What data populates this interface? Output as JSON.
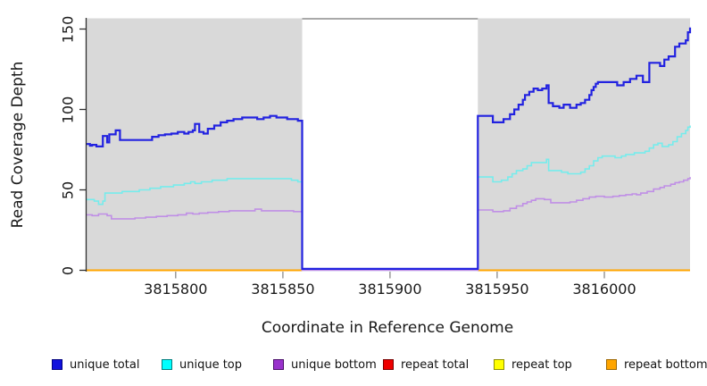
{
  "chart_data": {
    "type": "line",
    "step_interpolation": true,
    "title": "",
    "xlabel": "Coordinate in Reference Genome",
    "ylabel": "Read Coverage Depth",
    "xlim": [
      3815758,
      3816040
    ],
    "ylim": [
      0,
      155
    ],
    "x_ticks": [
      3815800,
      3815850,
      3815900,
      3815950,
      3816000
    ],
    "y_ticks": [
      0,
      50,
      100,
      150
    ],
    "grid": "off",
    "plot_background_color": "#ffffff",
    "shaded_region_color": "#d9d9d9",
    "shaded_regions": [
      [
        3815758,
        3815859
      ],
      [
        3815941,
        3816040
      ]
    ],
    "masked_gap": {
      "from": 3815859,
      "to": 3815941,
      "top_border_color": "#a9a9a9"
    },
    "legend_position": "bottom",
    "legend": [
      {
        "label": "unique total",
        "fill": "#1111dd",
        "border": "#000080"
      },
      {
        "label": "unique top",
        "fill": "#00ffff",
        "border": "#007f7f"
      },
      {
        "label": "unique bottom",
        "fill": "#9932cc",
        "border": "#4b0e6b"
      },
      {
        "label": "repeat total",
        "fill": "#ee0000",
        "border": "#7a0000"
      },
      {
        "label": "repeat top",
        "fill": "#ffff00",
        "border": "#8f8f00"
      },
      {
        "label": "repeat bottom",
        "fill": "#ffa500",
        "border": "#9e6700"
      }
    ],
    "series": [
      {
        "name": "repeat total",
        "color": "#ee0000",
        "width": 1.6,
        "segments": [
          [
            [
              3815758,
              0
            ],
            [
              3815859,
              0
            ]
          ],
          [
            [
              3815941,
              0
            ],
            [
              3816040,
              0
            ]
          ]
        ]
      },
      {
        "name": "repeat top",
        "color": "#ffff00",
        "width": 1.6,
        "segments": [
          [
            [
              3815758,
              0
            ],
            [
              3815859,
              0
            ]
          ],
          [
            [
              3815941,
              0
            ],
            [
              3816040,
              0
            ]
          ]
        ]
      },
      {
        "name": "repeat bottom",
        "color": "#ffa500",
        "width": 2,
        "segments": [
          [
            [
              3815758,
              0
            ],
            [
              3815859,
              0
            ]
          ],
          [
            [
              3815941,
              0
            ],
            [
              3816040,
              0
            ]
          ]
        ]
      },
      {
        "name": "unique top",
        "color": "#76ecec",
        "width": 1.6,
        "segments": [
          [
            [
              3815758,
              44
            ],
            [
              3815762,
              43
            ],
            [
              3815764,
              41
            ],
            [
              3815766,
              43
            ],
            [
              3815767,
              48
            ],
            [
              3815775,
              49
            ],
            [
              3815783,
              50
            ],
            [
              3815788,
              51
            ],
            [
              3815793,
              52
            ],
            [
              3815799,
              53
            ],
            [
              3815804,
              54
            ],
            [
              3815807,
              55
            ],
            [
              3815809,
              54
            ],
            [
              3815812,
              55
            ],
            [
              3815817,
              56
            ],
            [
              3815824,
              57
            ],
            [
              3815852,
              57
            ],
            [
              3815854,
              56
            ],
            [
              3815857,
              55
            ],
            [
              3815859,
              0.1
            ],
            [
              3815941,
              58
            ],
            [
              3815948,
              55
            ],
            [
              3815952,
              56
            ],
            [
              3815955,
              58
            ],
            [
              3815957,
              60
            ],
            [
              3815959,
              62
            ],
            [
              3815962,
              63
            ],
            [
              3815964,
              65
            ],
            [
              3815966,
              67
            ],
            [
              3815971,
              67
            ],
            [
              3815973,
              69
            ],
            [
              3815974,
              62
            ],
            [
              3815980,
              61
            ],
            [
              3815983,
              60
            ],
            [
              3815989,
              61
            ],
            [
              3815991,
              63
            ],
            [
              3815993,
              65
            ],
            [
              3815995,
              68
            ],
            [
              3815997,
              70
            ],
            [
              3815999,
              71
            ],
            [
              3816005,
              70
            ],
            [
              3816008,
              71
            ],
            [
              3816010,
              72
            ],
            [
              3816014,
              73
            ],
            [
              3816019,
              74
            ],
            [
              3816021,
              76
            ],
            [
              3816023,
              78
            ],
            [
              3816025,
              79
            ],
            [
              3816027,
              77
            ],
            [
              3816030,
              78
            ],
            [
              3816032,
              80
            ],
            [
              3816034,
              83
            ],
            [
              3816036,
              85
            ],
            [
              3816038,
              87
            ],
            [
              3816039,
              89
            ],
            [
              3816040,
              90
            ]
          ]
        ]
      },
      {
        "name": "unique bottom",
        "color": "#c08fe6",
        "width": 1.6,
        "segments": [
          [
            [
              3815758,
              34.5
            ],
            [
              3815761,
              34
            ],
            [
              3815764,
              35
            ],
            [
              3815768,
              34
            ],
            [
              3815770,
              32
            ],
            [
              3815781,
              32.5
            ],
            [
              3815786,
              33
            ],
            [
              3815791,
              33.5
            ],
            [
              3815796,
              34
            ],
            [
              3815801,
              34.5
            ],
            [
              3815805,
              35.5
            ],
            [
              3815808,
              35
            ],
            [
              3815811,
              35.5
            ],
            [
              3815815,
              36
            ],
            [
              3815820,
              36.5
            ],
            [
              3815825,
              37
            ],
            [
              3815837,
              38
            ],
            [
              3815840,
              37
            ],
            [
              3815855,
              36.5
            ],
            [
              3815859,
              0.05
            ],
            [
              3815941,
              37.5
            ],
            [
              3815948,
              36.5
            ],
            [
              3815953,
              37
            ],
            [
              3815956,
              38.5
            ],
            [
              3815959,
              40
            ],
            [
              3815962,
              41.5
            ],
            [
              3815964,
              42.5
            ],
            [
              3815966,
              43.5
            ],
            [
              3815968,
              44.5
            ],
            [
              3815972,
              44
            ],
            [
              3815975,
              42
            ],
            [
              3815984,
              42.5
            ],
            [
              3815987,
              43.5
            ],
            [
              3815990,
              44.5
            ],
            [
              3815993,
              45.5
            ],
            [
              3815996,
              46
            ],
            [
              3816000,
              45.5
            ],
            [
              3816004,
              46
            ],
            [
              3816007,
              46.5
            ],
            [
              3816010,
              47
            ],
            [
              3816013,
              47.5
            ],
            [
              3816015,
              47
            ],
            [
              3816017,
              48
            ],
            [
              3816020,
              49
            ],
            [
              3816023,
              50.5
            ],
            [
              3816026,
              51.5
            ],
            [
              3816028,
              52.5
            ],
            [
              3816031,
              53.5
            ],
            [
              3816033,
              54.5
            ],
            [
              3816035,
              55
            ],
            [
              3816037,
              56
            ],
            [
              3816039,
              57
            ],
            [
              3816040,
              58
            ]
          ]
        ]
      },
      {
        "name": "unique total",
        "color": "#2222e0",
        "width": 2.2,
        "segments": [
          [
            [
              3815758,
              78.5
            ],
            [
              3815760,
              77.5
            ],
            [
              3815761,
              78
            ],
            [
              3815763,
              77
            ],
            [
              3815766,
              83.5
            ],
            [
              3815768,
              79.5
            ],
            [
              3815769,
              84.5
            ],
            [
              3815772,
              87
            ],
            [
              3815774,
              81
            ],
            [
              3815787,
              81
            ],
            [
              3815789,
              83
            ],
            [
              3815792,
              84
            ],
            [
              3815795,
              84.5
            ],
            [
              3815798,
              85
            ],
            [
              3815801,
              86
            ],
            [
              3815804,
              85
            ],
            [
              3815806,
              86
            ],
            [
              3815808,
              87
            ],
            [
              3815809,
              91
            ],
            [
              3815811,
              86
            ],
            [
              3815813,
              85
            ],
            [
              3815815,
              88
            ],
            [
              3815818,
              90
            ],
            [
              3815821,
              92
            ],
            [
              3815824,
              93
            ],
            [
              3815827,
              94
            ],
            [
              3815831,
              95
            ],
            [
              3815836,
              95
            ],
            [
              3815838,
              94
            ],
            [
              3815841,
              95
            ],
            [
              3815844,
              96
            ],
            [
              3815847,
              95
            ],
            [
              3815852,
              94
            ],
            [
              3815855,
              94
            ],
            [
              3815857,
              93
            ],
            [
              3815859,
              0.9
            ],
            [
              3815941,
              96
            ],
            [
              3815948,
              92
            ],
            [
              3815953,
              94
            ],
            [
              3815956,
              97
            ],
            [
              3815958,
              100
            ],
            [
              3815960,
              103
            ],
            [
              3815962,
              106
            ],
            [
              3815963,
              109
            ],
            [
              3815965,
              111
            ],
            [
              3815967,
              113
            ],
            [
              3815969,
              112
            ],
            [
              3815971,
              113
            ],
            [
              3815973,
              115
            ],
            [
              3815974,
              104
            ],
            [
              3815976,
              102
            ],
            [
              3815979,
              101
            ],
            [
              3815981,
              103
            ],
            [
              3815984,
              101
            ],
            [
              3815987,
              103
            ],
            [
              3815989,
              104
            ],
            [
              3815991,
              106
            ],
            [
              3815993,
              109
            ],
            [
              3815994,
              112
            ],
            [
              3815995,
              114
            ],
            [
              3815996,
              116
            ],
            [
              3815997,
              117
            ],
            [
              3816006,
              115
            ],
            [
              3816009,
              117
            ],
            [
              3816012,
              119
            ],
            [
              3816015,
              121
            ],
            [
              3816018,
              117
            ],
            [
              3816021,
              129
            ],
            [
              3816026,
              127
            ],
            [
              3816028,
              131
            ],
            [
              3816030,
              133
            ],
            [
              3816033,
              139
            ],
            [
              3816035,
              141
            ],
            [
              3816038,
              143
            ],
            [
              3816039,
              148
            ],
            [
              3816040,
              151
            ]
          ]
        ]
      }
    ]
  }
}
